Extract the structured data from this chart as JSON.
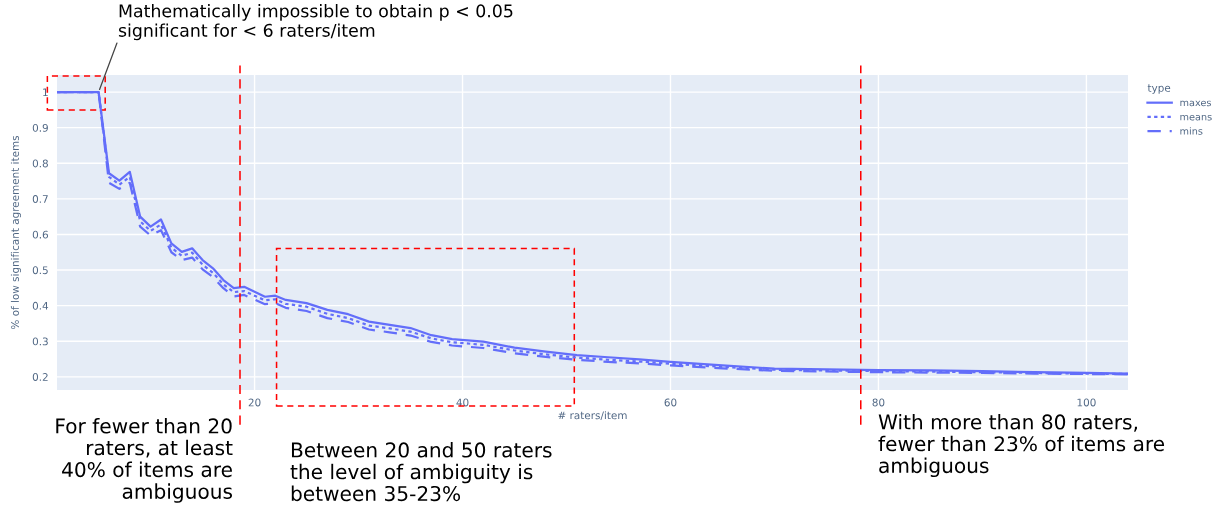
{
  "chart_data": {
    "type": "line",
    "xlabel": "# raters/item",
    "ylabel": "% of low significant agreement items",
    "legend_title": "type",
    "x": [
      1,
      2,
      3,
      4,
      5,
      6,
      7,
      8,
      9,
      10,
      11,
      12,
      13,
      14,
      15,
      16,
      17,
      18,
      19,
      20,
      21,
      22,
      23,
      25,
      27,
      29,
      31,
      33,
      35,
      37,
      39,
      42,
      45,
      48,
      51,
      54,
      57,
      60,
      65,
      70,
      75,
      80,
      85,
      90,
      95,
      100,
      104
    ],
    "series": [
      {
        "name": "maxes",
        "color": "#636efa",
        "line_style": "solid",
        "values": [
          1,
          1,
          1,
          1,
          1,
          0.772,
          0.751,
          0.776,
          0.65,
          0.622,
          0.642,
          0.575,
          0.551,
          0.561,
          0.528,
          0.505,
          0.472,
          0.449,
          0.453,
          0.439,
          0.425,
          0.428,
          0.416,
          0.407,
          0.388,
          0.376,
          0.355,
          0.346,
          0.337,
          0.317,
          0.306,
          0.299,
          0.282,
          0.271,
          0.261,
          0.255,
          0.249,
          0.242,
          0.232,
          0.223,
          0.221,
          0.219,
          0.218,
          0.216,
          0.213,
          0.211,
          0.209
        ]
      },
      {
        "name": "means",
        "color": "#636efa",
        "line_style": "dotted",
        "values": [
          1,
          1,
          1,
          1,
          1,
          0.762,
          0.74,
          0.762,
          0.637,
          0.61,
          0.628,
          0.563,
          0.54,
          0.549,
          0.515,
          0.492,
          0.46,
          0.438,
          0.441,
          0.428,
          0.415,
          0.418,
          0.405,
          0.397,
          0.377,
          0.365,
          0.344,
          0.336,
          0.327,
          0.308,
          0.297,
          0.29,
          0.274,
          0.263,
          0.254,
          0.248,
          0.243,
          0.237,
          0.228,
          0.22,
          0.218,
          0.216,
          0.215,
          0.213,
          0.211,
          0.209,
          0.208
        ]
      },
      {
        "name": "mins",
        "color": "#636efa",
        "line_style": "dashed",
        "values": [
          1,
          1,
          1,
          1,
          1,
          0.745,
          0.728,
          0.745,
          0.622,
          0.597,
          0.612,
          0.55,
          0.528,
          0.535,
          0.502,
          0.48,
          0.449,
          0.426,
          0.43,
          0.417,
          0.404,
          0.407,
          0.394,
          0.385,
          0.365,
          0.354,
          0.333,
          0.325,
          0.316,
          0.298,
          0.288,
          0.281,
          0.266,
          0.256,
          0.248,
          0.242,
          0.238,
          0.232,
          0.224,
          0.217,
          0.215,
          0.213,
          0.212,
          0.211,
          0.209,
          0.208,
          0.207
        ]
      }
    ],
    "xlim": [
      1,
      104
    ],
    "ylim": [
      0.163,
      1.048
    ],
    "xticks": [
      20,
      40,
      60,
      80,
      100
    ],
    "yticks": [
      0.2,
      0.3,
      0.4,
      0.5,
      0.6,
      0.7,
      0.8,
      0.9,
      1
    ],
    "grid": true,
    "legend": "top right",
    "marker": "none",
    "ref_lines": [
      {
        "axis": "x",
        "value": 18.6,
        "color": "#ff0000",
        "line_style": "dashed"
      },
      {
        "axis": "x",
        "value": 78.3,
        "color": "#ff0000",
        "line_style": "dashed"
      }
    ],
    "annotations": [
      {
        "text": "Mathematically impossible to obtain p < 0.05\nsignificant for < 6 raters/item",
        "x": 5,
        "y": 1
      },
      "For fewer than 20\nraters, at least\n40% of items are\nambiguous",
      "Between 20 and 50 raters\nthe level of ambiguity is\nbetween 35-23%",
      "With more than 80 raters,\nfewer than 23% of items are\nambiguous"
    ]
  }
}
